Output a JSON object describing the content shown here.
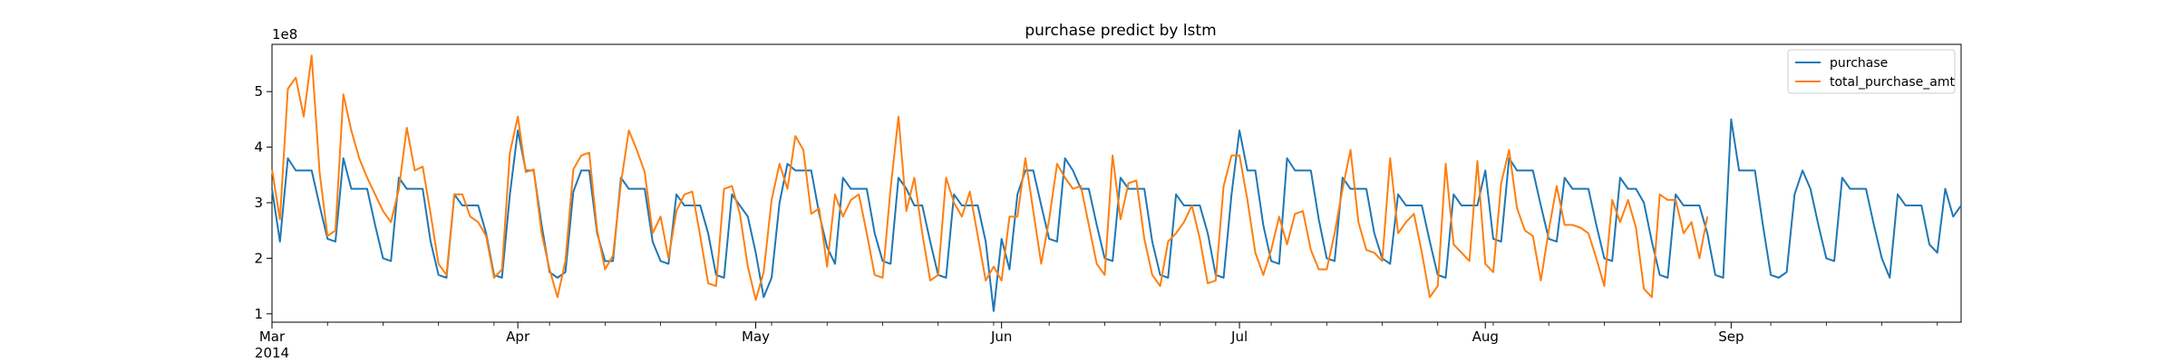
{
  "chart_data": {
    "type": "line",
    "title": "purchase predict by lstm",
    "xlabel": "",
    "ylabel": "",
    "y_offset_label": "1e8",
    "ylim": [
      0.85,
      5.85
    ],
    "yticks": [
      1,
      2,
      3,
      4,
      5
    ],
    "x_start": "2014-03-01",
    "x_end": "2014-09-30",
    "month_ticks": [
      {
        "date": "2014-03-01",
        "label": "Mar",
        "sublabel": "2014"
      },
      {
        "date": "2014-04-01",
        "label": "Apr",
        "sublabel": ""
      },
      {
        "date": "2014-05-01",
        "label": "May",
        "sublabel": ""
      },
      {
        "date": "2014-06-01",
        "label": "Jun",
        "sublabel": ""
      },
      {
        "date": "2014-07-01",
        "label": "Jul",
        "sublabel": ""
      },
      {
        "date": "2014-08-01",
        "label": "Aug",
        "sublabel": ""
      },
      {
        "date": "2014-09-01",
        "label": "Sep",
        "sublabel": ""
      }
    ],
    "grid": false,
    "legend_position": "top-right",
    "colors": {
      "purchase": "#1f77b4",
      "total_purchase_amt": "#ff7f0e"
    },
    "series": [
      {
        "name": "purchase",
        "color": "#1f77b4",
        "x_start": "2014-03-01",
        "values": [
          3.25,
          2.3,
          3.8,
          3.58,
          3.58,
          3.58,
          2.95,
          2.35,
          2.3,
          3.8,
          3.25,
          3.25,
          3.25,
          2.6,
          2.0,
          1.95,
          3.45,
          3.25,
          3.25,
          3.25,
          2.3,
          1.7,
          1.65,
          3.15,
          2.95,
          2.95,
          2.95,
          2.45,
          1.7,
          1.65,
          3.15,
          4.3,
          3.58,
          3.58,
          2.6,
          1.75,
          1.65,
          1.75,
          3.2,
          3.58,
          3.58,
          2.45,
          1.95,
          1.95,
          3.45,
          3.25,
          3.25,
          3.25,
          2.3,
          1.95,
          1.9,
          3.15,
          2.95,
          2.95,
          2.95,
          2.45,
          1.7,
          1.65,
          3.15,
          2.95,
          2.75,
          2.1,
          1.3,
          1.65,
          3.0,
          3.7,
          3.58,
          3.58,
          3.58,
          2.8,
          2.2,
          1.9,
          3.45,
          3.25,
          3.25,
          3.25,
          2.45,
          1.95,
          1.9,
          3.45,
          3.25,
          2.95,
          2.95,
          2.3,
          1.7,
          1.65,
          3.15,
          2.95,
          2.95,
          2.95,
          2.3,
          1.05,
          2.35,
          1.8,
          3.15,
          3.58,
          3.58,
          2.95,
          2.35,
          2.3,
          3.8,
          3.58,
          3.25,
          3.25,
          2.6,
          2.0,
          1.95,
          3.45,
          3.25,
          3.25,
          3.25,
          2.3,
          1.7,
          1.65,
          3.15,
          2.95,
          2.95,
          2.95,
          2.45,
          1.7,
          1.65,
          3.15,
          4.3,
          3.58,
          3.58,
          2.6,
          1.95,
          1.9,
          3.8,
          3.58,
          3.58,
          3.58,
          2.7,
          2.0,
          1.95,
          3.45,
          3.25,
          3.25,
          3.25,
          2.45,
          2.0,
          1.9,
          3.15,
          2.95,
          2.95,
          2.95,
          2.3,
          1.7,
          1.65,
          3.15,
          2.95,
          2.95,
          2.95,
          3.58,
          2.35,
          2.3,
          3.8,
          3.58,
          3.58,
          3.58,
          2.95,
          2.35,
          2.3,
          3.45,
          3.25,
          3.25,
          3.25,
          2.6,
          2.0,
          1.95,
          3.45,
          3.25,
          3.25,
          3.0,
          2.3,
          1.7,
          1.65,
          3.15,
          2.95,
          2.95,
          2.95,
          2.45,
          1.7,
          1.65,
          4.5,
          3.58,
          3.58,
          3.58,
          2.6,
          1.7,
          1.65,
          1.75,
          3.15,
          3.58,
          3.25,
          2.6,
          2.0,
          1.95,
          3.45,
          3.25,
          3.25,
          3.25,
          2.6,
          2.0,
          1.65,
          3.15,
          2.95,
          2.95,
          2.95,
          2.25,
          2.1,
          3.25,
          2.75,
          2.95
        ]
      },
      {
        "name": "total_purchase_amt",
        "color": "#ff7f0e",
        "x_start": "2014-03-01",
        "values": [
          3.6,
          2.7,
          5.05,
          5.25,
          4.55,
          5.65,
          3.55,
          2.4,
          2.5,
          4.95,
          4.3,
          3.8,
          3.45,
          3.15,
          2.85,
          2.65,
          3.25,
          4.35,
          3.58,
          3.65,
          2.8,
          1.9,
          1.7,
          3.15,
          3.15,
          2.75,
          2.65,
          2.4,
          1.65,
          1.8,
          3.9,
          4.55,
          3.55,
          3.6,
          2.45,
          1.8,
          1.3,
          1.95,
          3.6,
          3.85,
          3.9,
          2.5,
          1.8,
          2.05,
          3.35,
          4.3,
          3.95,
          3.55,
          2.45,
          2.75,
          2.0,
          2.85,
          3.15,
          3.2,
          2.4,
          1.55,
          1.5,
          3.25,
          3.3,
          2.8,
          1.85,
          1.25,
          1.75,
          3.05,
          3.7,
          3.25,
          4.2,
          3.95,
          2.8,
          2.9,
          1.85,
          3.15,
          2.75,
          3.05,
          3.15,
          2.45,
          1.7,
          1.65,
          3.25,
          4.55,
          2.85,
          3.45,
          2.45,
          1.6,
          1.7,
          3.45,
          3.0,
          2.75,
          3.2,
          2.4,
          1.6,
          1.85,
          1.6,
          2.75,
          2.75,
          3.8,
          2.85,
          1.9,
          2.7,
          3.7,
          3.45,
          3.25,
          3.3,
          2.6,
          1.9,
          1.7,
          3.85,
          2.7,
          3.35,
          3.4,
          2.35,
          1.7,
          1.5,
          2.3,
          2.45,
          2.65,
          2.95,
          2.35,
          1.55,
          1.6,
          3.3,
          3.85,
          3.85,
          3.05,
          2.1,
          1.7,
          2.15,
          2.75,
          2.25,
          2.8,
          2.85,
          2.15,
          1.8,
          1.8,
          2.45,
          3.25,
          3.95,
          2.65,
          2.15,
          2.1,
          1.95,
          3.8,
          2.45,
          2.65,
          2.8,
          2.1,
          1.3,
          1.5,
          3.7,
          2.25,
          2.1,
          1.95,
          3.75,
          1.9,
          1.75,
          3.35,
          3.95,
          2.9,
          2.5,
          2.4,
          1.6,
          2.5,
          3.3,
          2.6,
          2.6,
          2.55,
          2.45,
          2.0,
          1.5,
          3.05,
          2.65,
          3.05,
          2.55,
          1.45,
          1.3,
          3.15,
          3.05,
          3.05,
          2.45,
          2.65,
          2.0,
          2.75
        ]
      }
    ]
  }
}
